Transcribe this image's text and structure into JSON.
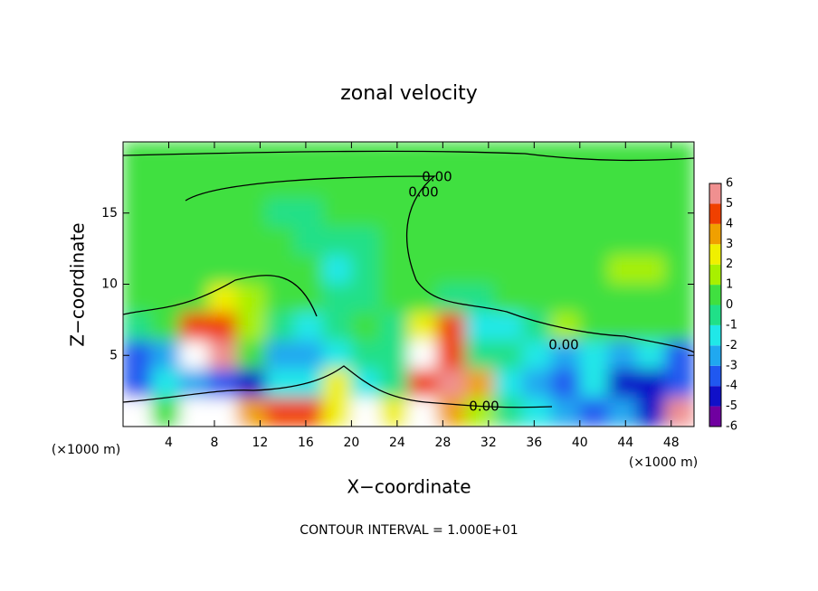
{
  "chart_data": {
    "type": "contourf",
    "title": "zonal velocity",
    "xlabel": "X−coordinate",
    "ylabel": "Z−coordinate",
    "x_unit_labels": [
      "(×1000 m)",
      "(×1000 m)"
    ],
    "footer": "CONTOUR INTERVAL = 1.000E+01",
    "contour_labels": [
      "0.00",
      "0.00",
      "0.00",
      "0.00"
    ],
    "xlim": [
      0,
      50
    ],
    "ylim": [
      0,
      20
    ],
    "xticks": [
      4,
      8,
      12,
      16,
      20,
      24,
      28,
      32,
      36,
      40,
      44,
      48
    ],
    "yticks": [
      5,
      10,
      15
    ],
    "colorbar": {
      "levels": [
        -6,
        -5,
        -4,
        -3,
        -2,
        -1,
        0,
        1,
        2,
        3,
        4,
        5,
        6
      ],
      "colors": [
        "#7000a0",
        "#1010c8",
        "#2058f0",
        "#20a8f0",
        "#20e8e8",
        "#20e088",
        "#40e040",
        "#a8f000",
        "#f0f000",
        "#f0a000",
        "#f04000",
        "#f09090"
      ],
      "over_color": "#ffffff"
    },
    "field": {
      "x": [
        1.25,
        3.75,
        6.25,
        8.75,
        11.25,
        13.75,
        16.25,
        18.75,
        21.25,
        23.75,
        26.25,
        28.75,
        31.25,
        33.75,
        36.25,
        38.75,
        41.25,
        43.75,
        46.25,
        48.75
      ],
      "y": [
        19,
        17,
        15,
        13,
        11,
        9,
        7,
        5,
        3,
        1
      ],
      "values": [
        [
          0.5,
          0.5,
          0.5,
          0.5,
          0.5,
          0.5,
          0.5,
          0.5,
          0.5,
          0.5,
          0.5,
          0.5,
          1,
          1,
          1,
          1,
          1,
          1,
          1,
          1
        ],
        [
          0.5,
          0.5,
          0.5,
          0.5,
          0.5,
          0.5,
          0.5,
          0.5,
          0.5,
          0.5,
          0.5,
          1,
          1,
          1,
          1,
          1,
          1,
          1,
          1,
          1
        ],
        [
          0.5,
          0.5,
          0.5,
          0.5,
          0.5,
          -0.5,
          -0.5,
          0.5,
          0.5,
          0.5,
          0.5,
          1,
          1,
          1,
          1,
          1,
          1,
          1,
          1,
          1
        ],
        [
          0.5,
          0.5,
          0.5,
          0.5,
          0.5,
          0.5,
          -0.5,
          -0.5,
          -0.5,
          0.5,
          0.5,
          1,
          1,
          1,
          1,
          1,
          1,
          1,
          1,
          1
        ],
        [
          0.5,
          0.5,
          0.5,
          0.5,
          0.5,
          0.5,
          0.5,
          -1.5,
          -0.5,
          0.5,
          0.5,
          1,
          1,
          1,
          1,
          1,
          1,
          1.5,
          1.5,
          1
        ],
        [
          0.5,
          0.5,
          0.5,
          2.5,
          1.5,
          0.5,
          0.5,
          -0.5,
          -0.5,
          0.5,
          0.5,
          -0.5,
          -0.5,
          0.5,
          0.5,
          0.5,
          1,
          1,
          1,
          0.5
        ],
        [
          -0.5,
          0.5,
          4.5,
          4.5,
          1.5,
          -0.5,
          -1.5,
          -0.5,
          0.5,
          -0.5,
          2.5,
          4.5,
          -1.5,
          -1.5,
          -0.5,
          1.5,
          0.5,
          0.5,
          0.5,
          0.5
        ],
        [
          -3.5,
          -2.5,
          6.5,
          5.5,
          0.5,
          -2.5,
          -2.5,
          -1.5,
          -0.5,
          -0.5,
          6.5,
          4.5,
          -0.5,
          -0.5,
          -1.5,
          -2.5,
          -1.5,
          -2.5,
          -1.5,
          -3.5
        ],
        [
          -3.5,
          -1.5,
          -2.5,
          -3.5,
          -4.5,
          -1.5,
          -1.5,
          2.5,
          -1.5,
          -0.5,
          4.5,
          5.5,
          3.5,
          -1.5,
          -2.5,
          -3.5,
          -1.5,
          -4.5,
          -4.5,
          -3.5
        ],
        [
          6.5,
          0.5,
          6.5,
          6.5,
          3.5,
          4.5,
          4.5,
          2.5,
          6.5,
          2.5,
          6.5,
          3.5,
          1.5,
          -0.5,
          -1.5,
          -2.5,
          -3.5,
          -2.5,
          -4.5,
          5.5
        ]
      ]
    }
  }
}
